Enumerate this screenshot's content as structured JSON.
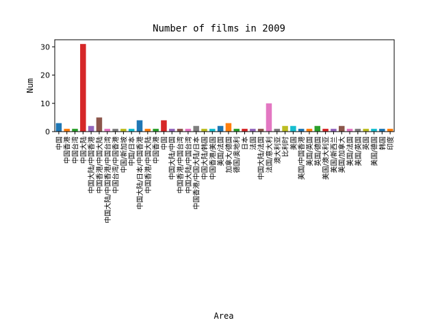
{
  "chart_data": {
    "type": "bar",
    "title": "Number of films in 2009",
    "xlabel": "Area",
    "ylabel": "Num",
    "ylim": [
      0,
      32.5
    ],
    "yticks": [
      0,
      10,
      20,
      30
    ],
    "grid": false,
    "categories": [
      "中国",
      "中国香港",
      "中国台湾",
      "中国大陆",
      "中国大陆/中国香港",
      "中国香港/中国大陆",
      "中国大陆/中国香港/中国台湾",
      "中国台湾/中国香港",
      "中国/新加坡",
      "中国/日本",
      "中国大陆/日本/中国香港",
      "中国香港/中国大陆",
      "中国香港",
      "中国",
      "中国大陆/中国",
      "中国香港/中国台湾",
      "中国大陆/中国台湾",
      "中国香港/中国大陆/日本",
      "中国大陆/韩国",
      "中国香港/美国",
      "美国/法国",
      "加拿大/德国",
      "德国/奥地利",
      "日本",
      "法国",
      "中国大陆/法国",
      "法国/意大利",
      "澳大利亚",
      "比利时",
      "美国",
      "美国/中国香港",
      "美国/英国",
      "英国/德国",
      "美国/澳大利亚",
      "美国/新西兰",
      "美国/加拿大",
      "美国/法国",
      "美国/英国",
      "英国",
      "美国/德国",
      "韩国",
      "印度"
    ],
    "values": [
      3,
      1,
      1,
      31,
      2,
      5,
      1,
      1,
      1,
      1,
      4,
      1,
      1,
      4,
      1,
      1,
      1,
      2,
      1,
      1,
      2,
      3,
      1,
      1,
      1,
      1,
      10,
      1,
      2,
      2,
      1,
      1,
      2,
      1,
      1,
      2,
      1,
      1,
      1,
      1,
      1,
      1
    ],
    "colors": [
      "#1f77b4",
      "#ff7f0e",
      "#2ca02c",
      "#d62728",
      "#9467bd",
      "#8c564b",
      "#e377c2",
      "#7f7f7f",
      "#bcbd22",
      "#17becf"
    ]
  }
}
